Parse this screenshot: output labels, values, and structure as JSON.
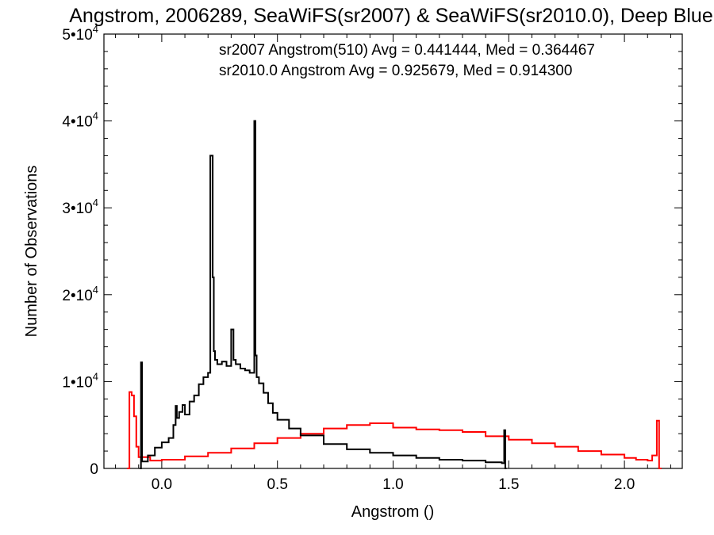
{
  "chart_data": {
    "type": "line",
    "title": "Angstrom, 2006289, SeaWiFS(sr2007) & SeaWiFS(sr2010.0), Deep Blue",
    "xlabel": "Angstrom ()",
    "ylabel": "Number of Observations",
    "xlim": [
      -0.25,
      2.25
    ],
    "ylim": [
      0,
      50000
    ],
    "x_ticks": [
      {
        "value": 0.0,
        "label": "0.0"
      },
      {
        "value": 0.5,
        "label": "0.5"
      },
      {
        "value": 1.0,
        "label": "1.0"
      },
      {
        "value": 1.5,
        "label": "1.5"
      },
      {
        "value": 2.0,
        "label": "2.0"
      }
    ],
    "y_ticks": [
      {
        "value": 0,
        "mant": "0",
        "exp": ""
      },
      {
        "value": 10000,
        "mant": "1•10",
        "exp": "4"
      },
      {
        "value": 20000,
        "mant": "2•10",
        "exp": "4"
      },
      {
        "value": 30000,
        "mant": "3•10",
        "exp": "4"
      },
      {
        "value": 40000,
        "mant": "4•10",
        "exp": "4"
      },
      {
        "value": 50000,
        "mant": "5•10",
        "exp": "4"
      }
    ],
    "annotations": [
      {
        "text": "sr2007 Angstrom(510) Avg = 0.441444, Med = 0.364467",
        "color": "#000000"
      },
      {
        "text": "sr2010.0 Angstrom Avg = 0.925679, Med = 0.914300",
        "color": "#ff0000"
      }
    ],
    "series": [
      {
        "color": "#000000",
        "x": [
          -0.095,
          -0.09,
          -0.085,
          -0.06,
          -0.03,
          0.0,
          0.03,
          0.05,
          0.06,
          0.065,
          0.075,
          0.09,
          0.1,
          0.12,
          0.14,
          0.16,
          0.18,
          0.2,
          0.21,
          0.22,
          0.225,
          0.23,
          0.24,
          0.26,
          0.28,
          0.3,
          0.31,
          0.32,
          0.34,
          0.36,
          0.38,
          0.4,
          0.405,
          0.41,
          0.42,
          0.44,
          0.46,
          0.48,
          0.5,
          0.55,
          0.6,
          0.7,
          0.8,
          0.9,
          1.0,
          1.1,
          1.2,
          1.3,
          1.4,
          1.47,
          1.48,
          1.485,
          1.49
        ],
        "y": [
          0,
          12200,
          800,
          1500,
          2400,
          3000,
          3500,
          5000,
          7200,
          5800,
          6500,
          7300,
          6200,
          7700,
          8400,
          9700,
          10500,
          11000,
          36000,
          22000,
          13500,
          12500,
          12000,
          12300,
          11800,
          16000,
          12500,
          12000,
          11500,
          11300,
          11000,
          40000,
          13000,
          10500,
          9800,
          8700,
          7500,
          6400,
          5600,
          4600,
          3800,
          2800,
          2200,
          1800,
          1500,
          1200,
          1000,
          900,
          700,
          600,
          4400,
          0,
          0
        ]
      },
      {
        "color": "#ff0000",
        "x": [
          -0.15,
          -0.14,
          -0.13,
          -0.12,
          -0.11,
          -0.1,
          -0.05,
          0.0,
          0.1,
          0.2,
          0.3,
          0.4,
          0.5,
          0.6,
          0.7,
          0.8,
          0.9,
          1.0,
          1.1,
          1.2,
          1.3,
          1.4,
          1.5,
          1.6,
          1.7,
          1.8,
          1.9,
          2.0,
          2.05,
          2.1,
          2.12,
          2.14,
          2.15,
          2.16
        ],
        "y": [
          0,
          8800,
          8400,
          6000,
          2500,
          1300,
          900,
          1000,
          1400,
          1800,
          2300,
          2900,
          3500,
          4000,
          4600,
          5000,
          5200,
          4700,
          4500,
          4400,
          4200,
          3700,
          3300,
          2900,
          2500,
          2000,
          1600,
          1200,
          1000,
          900,
          1500,
          5500,
          0,
          0
        ]
      }
    ]
  }
}
